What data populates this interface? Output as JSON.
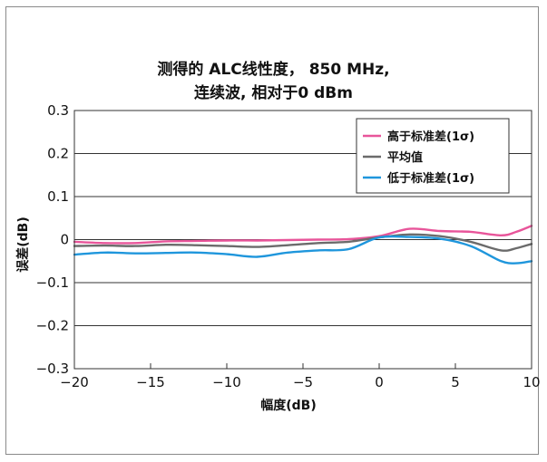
{
  "chart_data": {
    "type": "line",
    "title_line1": "测得的 ALC线性度， 850 MHz,",
    "title_line2": "连续波, 相对于0 dBm",
    "xlabel": "幅度(dB)",
    "ylabel": "误差(dB)",
    "xlim": [
      -20,
      10
    ],
    "ylim": [
      -0.3,
      0.3
    ],
    "xticks": [
      -20,
      -15,
      -10,
      -5,
      0,
      5,
      10
    ],
    "xtick_labels": [
      "−20",
      "−15",
      "−10",
      "−5",
      "0",
      "5",
      "10"
    ],
    "yticks": [
      0.3,
      0.2,
      0.1,
      0,
      -0.1,
      -0.2,
      -0.3
    ],
    "ytick_labels": [
      "0.3",
      "0.2",
      "0.1",
      "0",
      "−0.1",
      "−0.2",
      "−0.3"
    ],
    "grid": "horizontal",
    "legend_position": "top-right",
    "x": [
      -20,
      -18,
      -16,
      -14,
      -12,
      -10,
      -8,
      -6,
      -4,
      -2,
      0,
      2,
      4,
      6,
      8,
      9,
      10
    ],
    "series": [
      {
        "name": "高于标准差(1σ)",
        "color": "#e8559a",
        "values": [
          -0.005,
          -0.008,
          -0.008,
          -0.004,
          -0.003,
          -0.002,
          -0.002,
          -0.001,
          0.0,
          0.001,
          0.008,
          0.025,
          0.02,
          0.018,
          0.01,
          0.018,
          0.032
        ]
      },
      {
        "name": "平均值",
        "color": "#6b6b6b",
        "values": [
          -0.015,
          -0.014,
          -0.015,
          -0.012,
          -0.013,
          -0.015,
          -0.017,
          -0.013,
          -0.008,
          -0.005,
          0.005,
          0.012,
          0.008,
          -0.005,
          -0.025,
          -0.02,
          -0.01
        ]
      },
      {
        "name": "低于标准差(1σ)",
        "color": "#1f96dc",
        "values": [
          -0.035,
          -0.03,
          -0.032,
          -0.031,
          -0.03,
          -0.034,
          -0.04,
          -0.03,
          -0.025,
          -0.022,
          0.005,
          0.006,
          0.002,
          -0.015,
          -0.05,
          -0.055,
          -0.05
        ]
      }
    ]
  }
}
